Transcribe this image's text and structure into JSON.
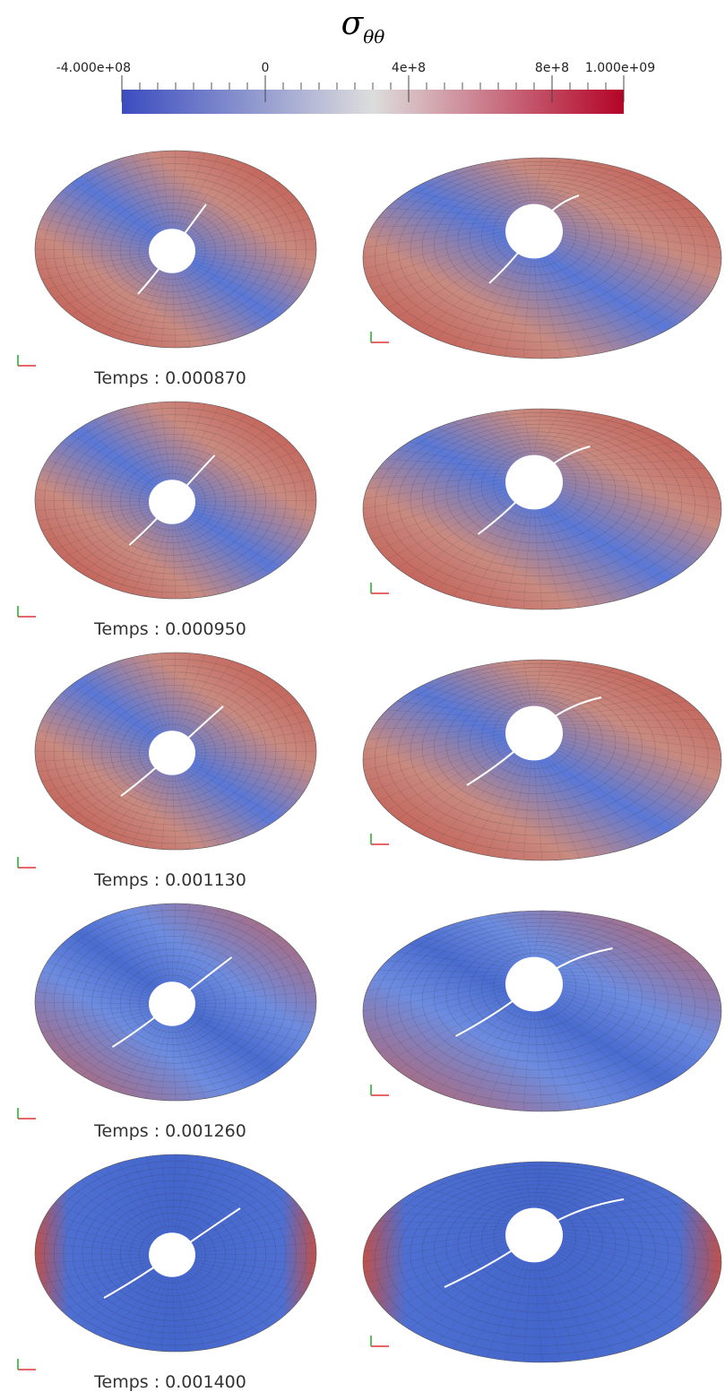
{
  "title": {
    "symbol": "σ",
    "subscript": "θθ"
  },
  "colorbar": {
    "range": [
      -400000000,
      1000000000
    ],
    "ticks": [
      {
        "value": -400000000,
        "label": "-4.000e+08"
      },
      0,
      {
        "value": 400000000,
        "label": "4e+8"
      },
      {
        "value": 800000000,
        "label": "8e+8"
      },
      {
        "value": 1000000000,
        "label": "1.000e+09"
      }
    ],
    "colors": [
      "#3b4cc0",
      "#dddddd",
      "#b40426"
    ]
  },
  "panels": [
    {
      "time": "Temps : 0.000870"
    },
    {
      "time": "Temps : 0.000950"
    },
    {
      "time": "Temps : 0.001130"
    },
    {
      "time": "Temps : 0.001260"
    },
    {
      "time": "Temps : 0.001400"
    }
  ]
}
